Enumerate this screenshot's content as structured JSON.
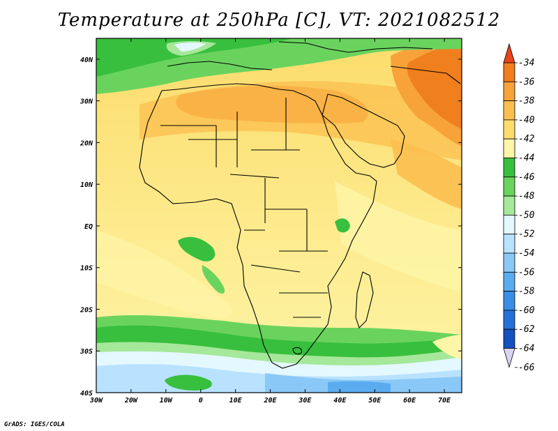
{
  "title": "Temperature at 250hPa [C], VT: 2021082512",
  "credit": "GrADS: IGES/COLA",
  "map": {
    "lon_range": [
      -30,
      75
    ],
    "lat_range": [
      -40,
      45
    ],
    "lon_ticks": [
      "30W",
      "20W",
      "10W",
      "0",
      "10E",
      "20E",
      "30E",
      "40E",
      "50E",
      "60E",
      "70E"
    ],
    "lat_ticks": [
      "40N",
      "30N",
      "20N",
      "10N",
      "EQ",
      "10S",
      "20S",
      "30S",
      "40S"
    ]
  },
  "colorbar": {
    "labels": [
      "-34",
      "-36",
      "-38",
      "-40",
      "-42",
      "-44",
      "-46",
      "-48",
      "-50",
      "-52",
      "-54",
      "-56",
      "-58",
      "-60",
      "-62",
      "-64",
      "-66"
    ],
    "colors": [
      "#e8431a",
      "#f07f1e",
      "#f8a33a",
      "#fbbf4f",
      "#fcdc6c",
      "#fdf5a8",
      "#38bf3e",
      "#6ad35e",
      "#a6e89a",
      "#e4f8ff",
      "#b8e2ff",
      "#8ac8f7",
      "#5aacef",
      "#3a8ee6",
      "#2470d8",
      "#1450c0",
      "#0a1d7a"
    ]
  }
}
